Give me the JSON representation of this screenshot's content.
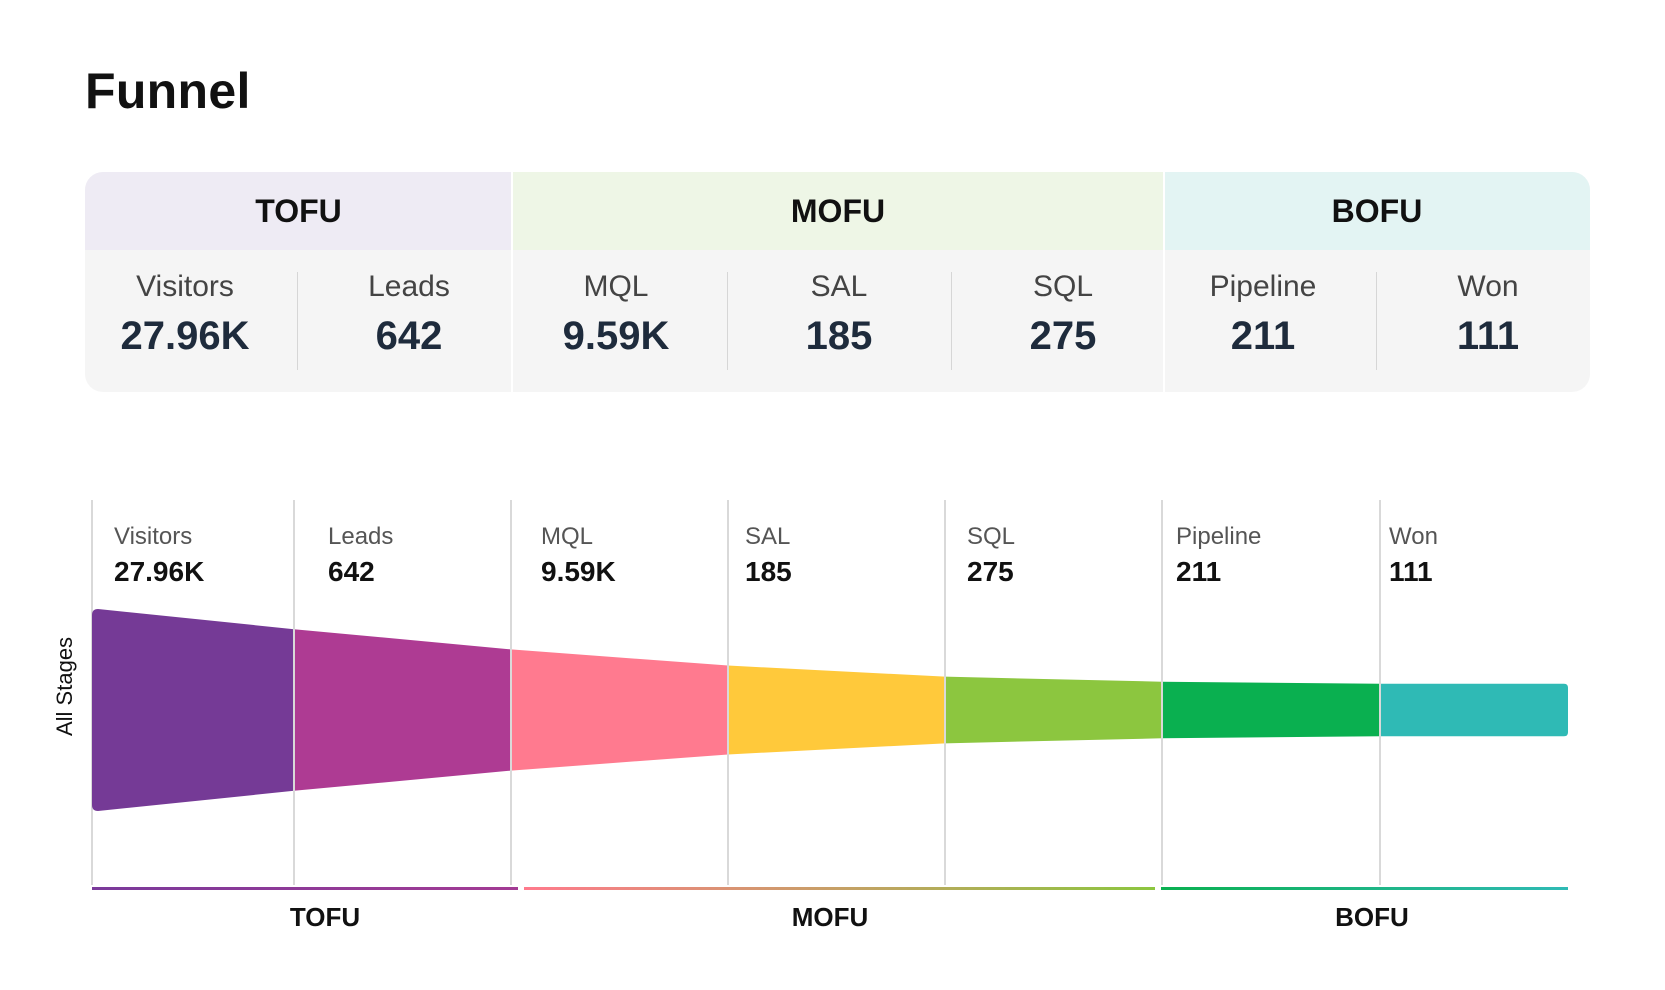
{
  "title": "Funnel",
  "groups": [
    {
      "name": "TOFU",
      "header_color": "#eeebf4",
      "bar_from": "#7a3a9a",
      "bar_to": "#a33b94"
    },
    {
      "name": "MOFU",
      "header_color": "#eef6e6",
      "bar_from": "#ff7a8c",
      "bar_to": "#8cc63f"
    },
    {
      "name": "BOFU",
      "header_color": "#e3f4f3",
      "bar_from": "#0ab050",
      "bar_to": "#2fbab5"
    }
  ],
  "summary": [
    {
      "label": "Visitors",
      "value": "27.96K"
    },
    {
      "label": "Leads",
      "value": "642"
    },
    {
      "label": "MQL",
      "value": "9.59K"
    },
    {
      "label": "SAL",
      "value": "185"
    },
    {
      "label": "SQL",
      "value": "275"
    },
    {
      "label": "Pipeline",
      "value": "211"
    },
    {
      "label": "Won",
      "value": "111"
    }
  ],
  "chart_data": {
    "type": "funnel",
    "y_axis_label": "All Stages",
    "categories": [
      "Visitors",
      "Leads",
      "MQL",
      "SAL",
      "SQL",
      "Pipeline",
      "Won"
    ],
    "value_labels": [
      "27.96K",
      "642",
      "9.59K",
      "185",
      "275",
      "211",
      "111"
    ],
    "values": [
      27960,
      642,
      9590,
      185,
      275,
      211,
      111
    ],
    "band_widths_relative": [
      1.0,
      0.8,
      0.6,
      0.44,
      0.33,
      0.28,
      0.26
    ],
    "colors": [
      "#753a96",
      "#ae3b93",
      "#ff7a8f",
      "#ffc93b",
      "#8cc63f",
      "#0ab050",
      "#2fbab5"
    ],
    "stage_groups": [
      "TOFU",
      "TOFU",
      "MOFU",
      "MOFU",
      "MOFU",
      "BOFU",
      "BOFU"
    ],
    "group_labels": [
      "TOFU",
      "MOFU",
      "BOFU"
    ]
  }
}
